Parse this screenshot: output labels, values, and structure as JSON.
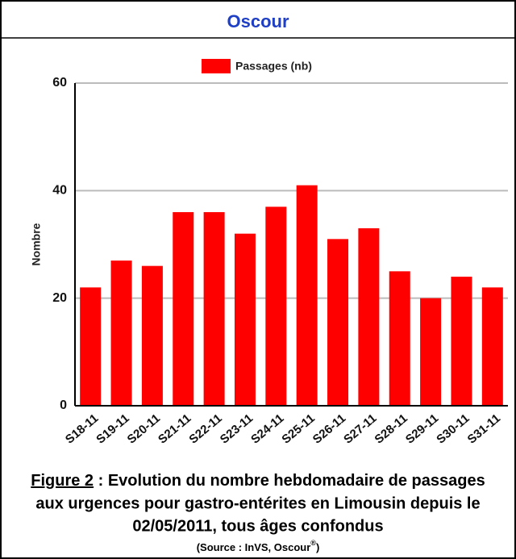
{
  "chart_data": {
    "type": "bar",
    "title": "Oscour",
    "legend": "Passages (nb)",
    "ylabel": "Nombre",
    "categories": [
      "S18-11",
      "S19-11",
      "S20-11",
      "S21-11",
      "S22-11",
      "S23-11",
      "S24-11",
      "S25-11",
      "S26-11",
      "S27-11",
      "S28-11",
      "S29-11",
      "S30-11",
      "S31-11"
    ],
    "values": [
      22,
      27,
      26,
      36,
      36,
      32,
      37,
      41,
      31,
      33,
      25,
      20,
      24,
      22
    ],
    "color": "#ff0000",
    "ylim": [
      0,
      60
    ],
    "yticks": [
      0,
      20,
      40,
      60
    ],
    "grid": true
  },
  "caption": {
    "label": "Figure 2",
    "lines": [
      " : Evolution du nombre hebdomadaire de passages",
      "aux urgences pour gastro-entérites en Limousin depuis le",
      "02/05/2011, tous âges confondus"
    ],
    "source": "(Source : InVS, Oscour",
    "source_mark": "®",
    "source_end": ")"
  }
}
